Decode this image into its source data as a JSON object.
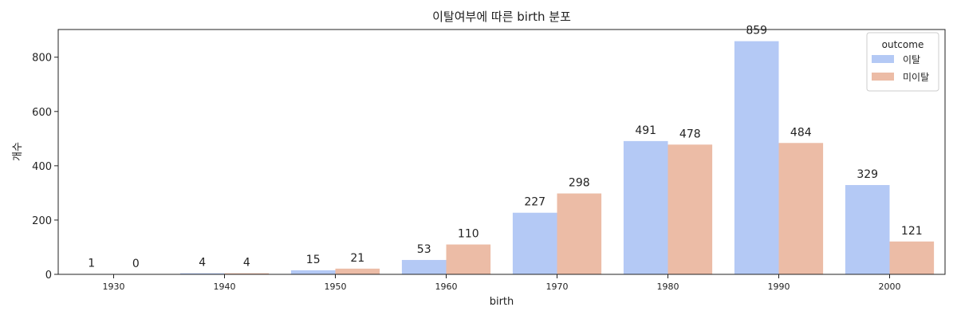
{
  "chart_data": {
    "type": "bar",
    "title": "이탈여부에 따른 birth 분포",
    "xlabel": "birth",
    "ylabel": "개수",
    "categories": [
      "1930",
      "1940",
      "1950",
      "1960",
      "1970",
      "1980",
      "1990",
      "2000"
    ],
    "series": [
      {
        "name": "이탈",
        "values": [
          1,
          4,
          15,
          53,
          227,
          491,
          859,
          329
        ],
        "color": "#b4c9f5"
      },
      {
        "name": "미이탈",
        "values": [
          0,
          4,
          21,
          110,
          298,
          478,
          484,
          121
        ],
        "color": "#ecbca6"
      }
    ],
    "ylim": [
      0,
      902
    ],
    "yticks": [
      0,
      200,
      400,
      600,
      800
    ],
    "legend": {
      "title": "outcome",
      "position": "top-right"
    },
    "grid": false
  }
}
